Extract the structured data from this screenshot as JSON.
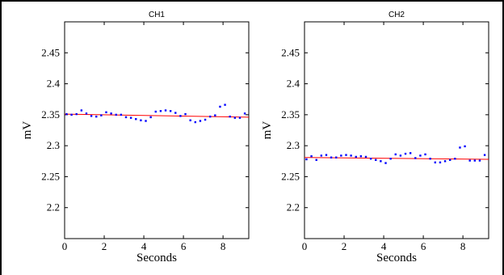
{
  "chart_data": [
    {
      "type": "scatter",
      "title": "CH1",
      "xlabel": "Seconds",
      "ylabel": "mV",
      "xlim": [
        0,
        9.3
      ],
      "ylim": [
        2.15,
        2.5
      ],
      "xticks": [
        "0",
        "2",
        "4",
        "6",
        "8"
      ],
      "yticks": [
        "2.2",
        "2.25",
        "2.3",
        "2.35",
        "2.4",
        "2.45"
      ],
      "xtick_values": [
        0,
        2,
        4,
        6,
        8
      ],
      "ytick_values": [
        2.2,
        2.25,
        2.3,
        2.35,
        2.4,
        2.45
      ],
      "grid": false,
      "colors": {
        "points": "#0000ff",
        "trend": "#ff0000"
      },
      "trend": {
        "x": [
          0,
          9.3
        ],
        "y": [
          2.351,
          2.346
        ]
      },
      "series": [
        {
          "x": [
            0.1,
            0.35,
            0.6,
            0.85,
            1.1,
            1.35,
            1.6,
            1.85,
            2.1,
            2.35,
            2.6,
            2.85,
            3.1,
            3.35,
            3.6,
            3.85,
            4.1,
            4.35,
            4.6,
            4.85,
            5.1,
            5.35,
            5.6,
            5.85,
            6.1,
            6.35,
            6.6,
            6.85,
            7.1,
            7.35,
            7.6,
            7.85,
            8.1,
            8.35,
            8.6,
            8.85,
            9.1
          ],
          "y": [
            2.351,
            2.35,
            2.351,
            2.357,
            2.352,
            2.348,
            2.347,
            2.349,
            2.354,
            2.352,
            2.35,
            2.35,
            2.346,
            2.345,
            2.343,
            2.341,
            2.34,
            2.346,
            2.355,
            2.356,
            2.357,
            2.356,
            2.353,
            2.348,
            2.351,
            2.341,
            2.338,
            2.34,
            2.342,
            2.347,
            2.349,
            2.363,
            2.366,
            2.347,
            2.345,
            2.345,
            2.352
          ]
        }
      ]
    },
    {
      "type": "scatter",
      "title": "CH2",
      "xlabel": "Seconds",
      "ylabel": "mV",
      "xlim": [
        0,
        9.3
      ],
      "ylim": [
        2.15,
        2.5
      ],
      "xticks": [
        "0",
        "2",
        "4",
        "6",
        "8"
      ],
      "yticks": [
        "2.2",
        "2.25",
        "2.3",
        "2.35",
        "2.4",
        "2.45"
      ],
      "xtick_values": [
        0,
        2,
        4,
        6,
        8
      ],
      "ytick_values": [
        2.2,
        2.25,
        2.3,
        2.35,
        2.4,
        2.45
      ],
      "grid": false,
      "colors": {
        "points": "#0000ff",
        "trend": "#ff0000"
      },
      "trend": {
        "x": [
          0,
          9.3
        ],
        "y": [
          2.281,
          2.278
        ]
      },
      "series": [
        {
          "x": [
            0.1,
            0.35,
            0.6,
            0.85,
            1.1,
            1.35,
            1.6,
            1.85,
            2.1,
            2.35,
            2.6,
            2.85,
            3.1,
            3.35,
            3.6,
            3.85,
            4.1,
            4.35,
            4.6,
            4.85,
            5.1,
            5.35,
            5.6,
            5.85,
            6.1,
            6.35,
            6.6,
            6.85,
            7.1,
            7.35,
            7.6,
            7.85,
            8.1,
            8.35,
            8.6,
            8.85,
            9.1
          ],
          "y": [
            2.278,
            2.283,
            2.277,
            2.284,
            2.285,
            2.281,
            2.281,
            2.284,
            2.285,
            2.284,
            2.282,
            2.283,
            2.282,
            2.279,
            2.277,
            2.275,
            2.272,
            2.279,
            2.286,
            2.284,
            2.287,
            2.288,
            2.28,
            2.284,
            2.286,
            2.279,
            2.273,
            2.273,
            2.275,
            2.277,
            2.279,
            2.297,
            2.299,
            2.276,
            2.276,
            2.276,
            2.285
          ]
        }
      ]
    }
  ]
}
